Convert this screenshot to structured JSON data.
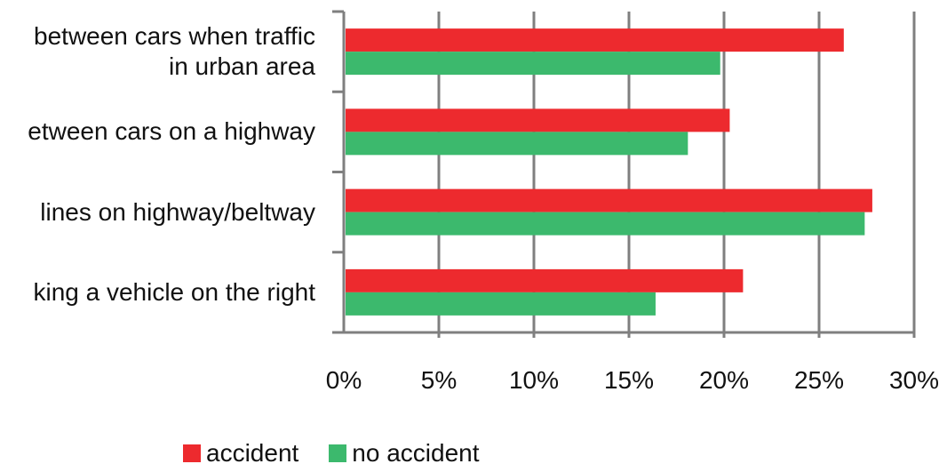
{
  "chart_data": {
    "type": "bar",
    "orientation": "horizontal",
    "categories": [
      [
        "between cars when traffic",
        "in urban area"
      ],
      [
        "etween cars on a highway"
      ],
      [
        "lines on highway/beltway"
      ],
      [
        "king a vehicle on the right"
      ]
    ],
    "series": [
      {
        "name": "accident",
        "color": "#ed2a2e",
        "values": [
          26.3,
          20.3,
          27.8,
          21.0
        ]
      },
      {
        "name": "no accident",
        "color": "#3cb96d",
        "values": [
          19.8,
          18.1,
          27.4,
          16.4
        ]
      }
    ],
    "x_ticks": [
      "0%",
      "5%",
      "10%",
      "15%",
      "20%",
      "25%",
      "30%"
    ],
    "xlim": [
      0,
      30
    ],
    "x_unit": "percent",
    "grid": "vertical",
    "legend_position": "bottom"
  }
}
